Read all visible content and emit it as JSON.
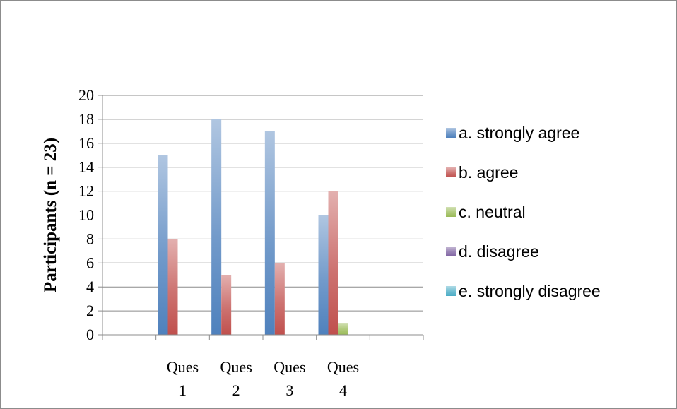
{
  "chart_data": {
    "type": "bar",
    "title": "",
    "xlabel": "",
    "ylabel": "Participants (n = 23)",
    "ylim": [
      0,
      20
    ],
    "yticks": [
      "0",
      "2",
      "4",
      "6",
      "8",
      "10",
      "12",
      "14",
      "16",
      "18",
      "20"
    ],
    "grid": true,
    "legend_position": "right",
    "categories": [
      [
        "",
        ""
      ],
      [
        "Ques",
        "1"
      ],
      [
        "Ques",
        "2"
      ],
      [
        "Ques",
        "3"
      ],
      [
        "Ques",
        "4"
      ],
      [
        "",
        ""
      ]
    ],
    "series": [
      {
        "name": "a. strongly agree",
        "color": "#4f81bd",
        "values": [
          0,
          15,
          18,
          17,
          10,
          0
        ]
      },
      {
        "name": "b. agree",
        "color": "#c0504d",
        "values": [
          0,
          8,
          5,
          6,
          12,
          0
        ]
      },
      {
        "name": "c. neutral",
        "color": "#9bbb59",
        "values": [
          0,
          0,
          0,
          0,
          1,
          0
        ]
      },
      {
        "name": "d. disagree",
        "color": "#8064a2",
        "values": [
          0,
          0,
          0,
          0,
          0,
          0
        ]
      },
      {
        "name": "e. strongly disagree",
        "color": "#4bacc6",
        "values": [
          0,
          0,
          0,
          0,
          0,
          0
        ]
      }
    ]
  }
}
